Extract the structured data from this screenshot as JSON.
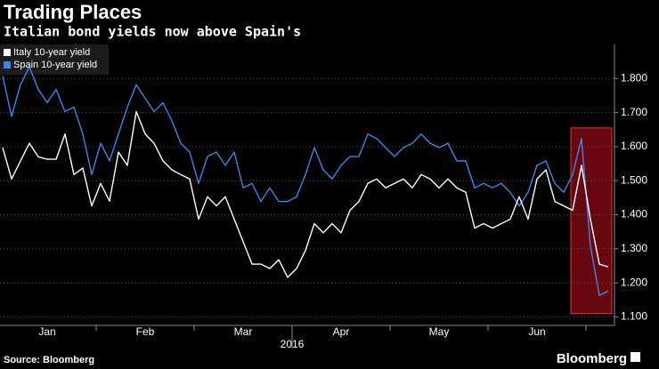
{
  "chart_data": {
    "type": "line",
    "title": "Trading Places",
    "subtitle": "Italian bond yields now above Spain's",
    "source": "Source: Bloomberg",
    "logo": "Bloomberg",
    "x_year_label": "2016",
    "legend": "top-left",
    "grid": true,
    "categories": [
      null,
      null,
      null,
      null,
      null,
      "Jan",
      null,
      null,
      null,
      null,
      null,
      null,
      null,
      null,
      null,
      null,
      "Feb",
      null,
      null,
      null,
      null,
      null,
      null,
      null,
      null,
      null,
      null,
      "Mar",
      null,
      null,
      null,
      null,
      null,
      null,
      null,
      null,
      null,
      null,
      "Apr",
      null,
      null,
      null,
      null,
      null,
      null,
      null,
      null,
      null,
      null,
      "May",
      null,
      null,
      null,
      null,
      null,
      null,
      null,
      null,
      null,
      null,
      "Jun",
      null,
      null,
      null,
      null,
      null,
      null,
      null,
      null
    ],
    "series": [
      {
        "name": "Italy 10-year yield",
        "color": "#ffffff",
        "values": [
          1.597,
          1.505,
          1.558,
          1.61,
          1.57,
          1.563,
          1.563,
          1.637,
          1.518,
          1.537,
          1.426,
          1.492,
          1.44,
          1.584,
          1.545,
          1.703,
          1.637,
          1.61,
          1.558,
          1.532,
          1.518,
          1.505,
          1.387,
          1.453,
          1.426,
          1.453,
          1.387,
          1.321,
          1.255,
          1.255,
          1.242,
          1.268,
          1.216,
          1.242,
          1.295,
          1.374,
          1.347,
          1.374,
          1.347,
          1.413,
          1.439,
          1.492,
          1.505,
          1.479,
          1.492,
          1.505,
          1.479,
          1.518,
          1.505,
          1.479,
          1.505,
          1.479,
          1.466,
          1.361,
          1.374,
          1.361,
          1.374,
          1.387,
          1.453,
          1.387,
          1.505,
          1.532,
          1.439,
          1.426,
          1.413,
          1.545,
          1.387,
          1.255,
          1.247
        ]
      },
      {
        "name": "Spain 10-year yield",
        "color": "#3a86e8",
        "values": [
          1.808,
          1.689,
          1.782,
          1.834,
          1.768,
          1.729,
          1.768,
          1.703,
          1.716,
          1.637,
          1.518,
          1.61,
          1.558,
          1.637,
          1.716,
          1.782,
          1.742,
          1.703,
          1.729,
          1.676,
          1.61,
          1.584,
          1.492,
          1.571,
          1.584,
          1.545,
          1.584,
          1.479,
          1.492,
          1.439,
          1.479,
          1.439,
          1.439,
          1.453,
          1.518,
          1.597,
          1.532,
          1.505,
          1.545,
          1.571,
          1.571,
          1.637,
          1.624,
          1.597,
          1.571,
          1.597,
          1.61,
          1.637,
          1.61,
          1.597,
          1.61,
          1.558,
          1.558,
          1.479,
          1.492,
          1.479,
          1.492,
          1.466,
          1.426,
          1.466,
          1.545,
          1.558,
          1.492,
          1.466,
          1.518,
          1.624,
          1.308,
          1.163,
          1.176
        ]
      }
    ],
    "ylim": [
      1.075,
      1.9
    ],
    "yticks": [
      {
        "value": 1.1,
        "label": "1.100"
      },
      {
        "value": 1.2,
        "label": "1.200"
      },
      {
        "value": 1.3,
        "label": "1.300"
      },
      {
        "value": 1.4,
        "label": "1.400"
      },
      {
        "value": 1.5,
        "label": "1.500"
      },
      {
        "value": 1.6,
        "label": "1.600"
      },
      {
        "value": 1.7,
        "label": "1.700"
      },
      {
        "value": 1.8,
        "label": "1.800"
      }
    ],
    "highlight": {
      "start": 64,
      "end": 68,
      "low": 1.11,
      "high": 1.655,
      "color": "#8b0a14"
    }
  }
}
